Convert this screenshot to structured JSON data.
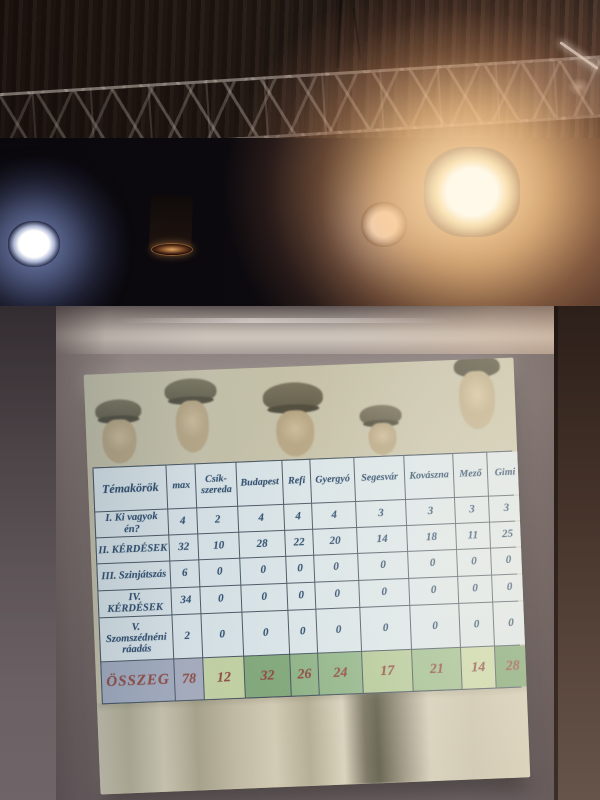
{
  "scene": {
    "description": "photo of a dark stage: lighting truss and four stage lights above, projection screen showing a sepia archive photo of men in caps with a quiz score table",
    "colors": {
      "curtain": "#241a14",
      "warm_light_glow": "#f6c084",
      "cool_light_halo": "#5f73b9",
      "screen_fabric": "#c6beb5",
      "wall": "#7c7170",
      "photo_sepia": "#b3ae93",
      "table_cell_bg": "#d9e4e8",
      "table_border": "#46525f",
      "table_text": "#2c4a6b",
      "total_text": "#8f4a42"
    }
  },
  "table": {
    "header": [
      "Témakörök",
      "max",
      "Csík-\nszereda",
      "Budapest",
      "Refi",
      "Gyergyó",
      "Segesvár",
      "Kovászna",
      "Mező",
      "Gimi"
    ],
    "rows": [
      {
        "label": "I. Ki vagyok én?",
        "values": [
          4,
          2,
          4,
          4,
          4,
          3,
          3,
          3,
          3
        ]
      },
      {
        "label": "II. KÉRDÉSEK",
        "values": [
          32,
          10,
          28,
          22,
          20,
          14,
          18,
          11,
          25
        ]
      },
      {
        "label": "III. Szinjátszás",
        "values": [
          6,
          0,
          0,
          0,
          0,
          0,
          0,
          0,
          0
        ]
      },
      {
        "label": "IV. KÉRDÉSEK",
        "values": [
          34,
          0,
          0,
          0,
          0,
          0,
          0,
          0,
          0
        ]
      },
      {
        "label": "V. Szomszédnéni\nráadás",
        "values": [
          2,
          0,
          0,
          0,
          0,
          0,
          0,
          0,
          0
        ]
      }
    ],
    "total_row": {
      "label": "ÖSSZEG",
      "values": [
        78,
        12,
        32,
        26,
        24,
        17,
        21,
        14,
        28
      ],
      "label_bg": "#a3abbf",
      "text_color": "#8f4a42",
      "cell_colors": [
        "#a5abbd",
        "#c3d2a2",
        "#82a87b",
        "#8eb286",
        "#90b488",
        "#b2c795",
        "#9cbc8d",
        "#c6d5a5",
        "#78a270"
      ]
    }
  },
  "chart_data": {
    "type": "table",
    "title": "Témakörök",
    "columns": [
      "max",
      "Csík-szereda",
      "Budapest",
      "Refi",
      "Gyergyó",
      "Segesvár",
      "Kovászna",
      "Mező",
      "Gimi"
    ],
    "rows": [
      {
        "label": "I. Ki vagyok én?",
        "values": [
          4,
          2,
          4,
          4,
          4,
          3,
          3,
          3,
          3
        ]
      },
      {
        "label": "II. KÉRDÉSEK",
        "values": [
          32,
          10,
          28,
          22,
          20,
          14,
          18,
          11,
          25
        ]
      },
      {
        "label": "III. Szinjátszás",
        "values": [
          6,
          0,
          0,
          0,
          0,
          0,
          0,
          0,
          0
        ]
      },
      {
        "label": "IV. KÉRDÉSEK",
        "values": [
          34,
          0,
          0,
          0,
          0,
          0,
          0,
          0,
          0
        ]
      },
      {
        "label": "V. Szomszédnéni ráadás",
        "values": [
          2,
          0,
          0,
          0,
          0,
          0,
          0,
          0,
          0
        ]
      },
      {
        "label": "ÖSSZEG",
        "values": [
          78,
          12,
          32,
          26,
          24,
          17,
          21,
          14,
          28
        ]
      }
    ]
  }
}
